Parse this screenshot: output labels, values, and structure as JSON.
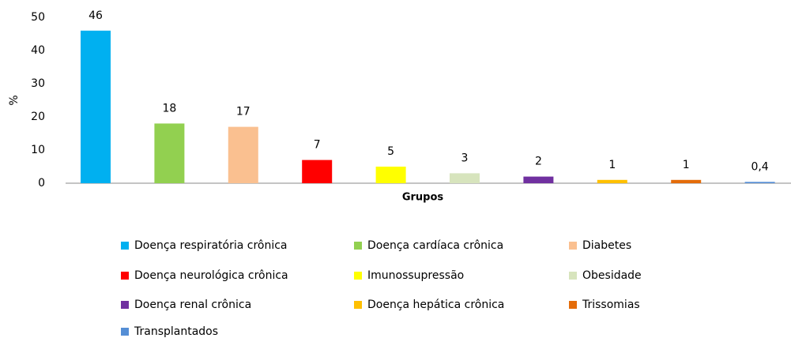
{
  "chart_data": {
    "type": "bar",
    "categories": [
      "Doença respiratória crônica",
      "Doença cardíaca crônica",
      "Diabetes",
      "Doença neurológica crônica",
      "Imunossupressão",
      "Obesidade",
      "Doença renal crônica",
      "Doença hepática crônica",
      "Trissomias",
      "Transplantados"
    ],
    "values": [
      46,
      18,
      17,
      7,
      5,
      3,
      2,
      1,
      1,
      0.4
    ],
    "value_labels": [
      "46",
      "18",
      "17",
      "7",
      "5",
      "3",
      "2",
      "1",
      "1",
      "0,4"
    ],
    "colors": [
      "#00b0f0",
      "#92d050",
      "#fac090",
      "#ff0000",
      "#ffff00",
      "#d7e4bd",
      "#7030a0",
      "#ffc000",
      "#e46c0a",
      "#558ed5"
    ],
    "ylabel": "%",
    "xlabel": "Grupos",
    "ylim": [
      0,
      50
    ],
    "yticks": [
      0,
      10,
      20,
      30,
      40,
      50
    ],
    "grid": false,
    "legend": "bottom"
  }
}
